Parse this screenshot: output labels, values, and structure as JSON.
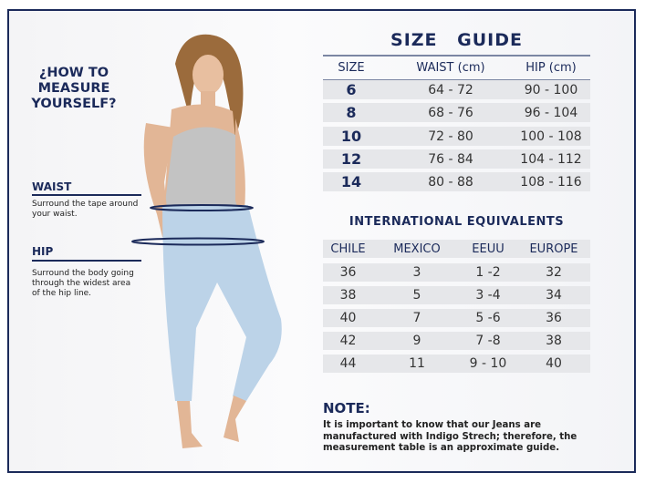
{
  "left_panel": {
    "title_line1": "¿HOW TO MEASURE",
    "title_line2": "YOURSELF?",
    "waist": {
      "label": "WAIST",
      "description": "Surround the tape around your waist."
    },
    "hip": {
      "label": "HIP",
      "description": "Surround the body going through the widest area of the hip line."
    }
  },
  "size_guide": {
    "title": "SIZE GUIDE",
    "headers": [
      "SIZE",
      "WAIST (cm)",
      "HIP (cm)"
    ],
    "rows": [
      [
        "6",
        "64 - 72",
        "90 - 100"
      ],
      [
        "8",
        "68 - 76",
        "96 - 104"
      ],
      [
        "10",
        "72 - 80",
        "100 - 108"
      ],
      [
        "12",
        "76 - 84",
        "104 - 112"
      ],
      [
        "14",
        "80 - 88",
        "108 - 116"
      ]
    ]
  },
  "international": {
    "title": "INTERNATIONAL EQUIVALENTS",
    "headers": [
      "CHILE",
      "MEXICO",
      "EEUU",
      "EUROPE"
    ],
    "rows": [
      [
        "36",
        "3",
        "1 -2",
        "32"
      ],
      [
        "38",
        "5",
        "3 -4",
        "34"
      ],
      [
        "40",
        "7",
        "5 -6",
        "36"
      ],
      [
        "42",
        "9",
        "7 -8",
        "38"
      ],
      [
        "44",
        "11",
        "9 - 10",
        "40"
      ]
    ]
  },
  "note": {
    "title": "NOTE:",
    "text": "It is important to know that our Jeans are manufactured with Indigo Strech; therefore, the measurement table is an approximate guide."
  },
  "colors": {
    "navy": "#1b2a5a",
    "row_gray": "#e6e7ea",
    "denim": "#bcd3e8"
  }
}
